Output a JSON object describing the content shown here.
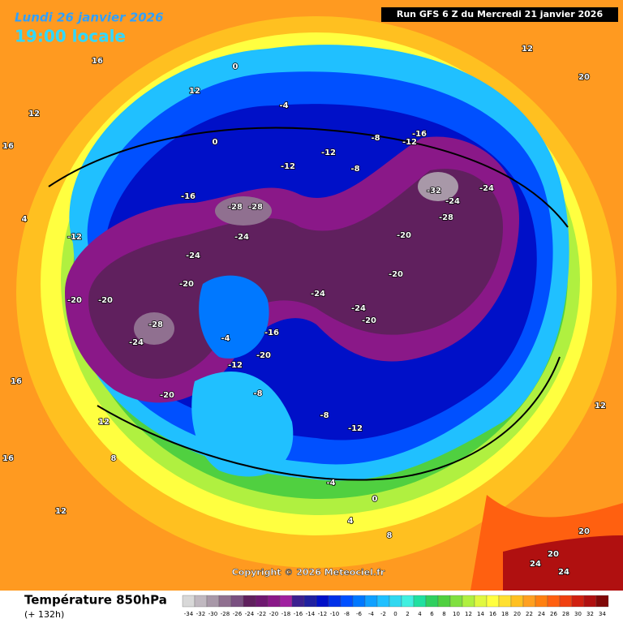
{
  "header": {
    "date": "Lundi 26 janvier 2026",
    "time": "19:00 locale",
    "run": "Run GFS 6 Z du Mercredi 21 janvier 2026"
  },
  "map": {
    "copyright": "Copyright © 2026 Meteociel.fr",
    "labels": [
      -20,
      -20,
      -28,
      -24,
      -20,
      -20,
      -24,
      -28,
      -28,
      -24,
      -16,
      -12,
      -12,
      -12,
      -8,
      -4,
      0,
      0,
      -20,
      -24,
      -24,
      -20,
      -32,
      -24,
      -28,
      -24,
      -20,
      -16,
      -12,
      -8,
      -16,
      -20,
      -12,
      -8,
      -4,
      -12,
      -8,
      -4,
      0,
      4,
      8,
      12,
      16,
      12,
      16,
      20,
      24,
      24,
      20,
      12,
      8,
      4,
      12,
      16,
      20,
      12,
      12,
      16
    ]
  },
  "legend": {
    "title": "Température 850hPa",
    "subtitle": "(+ 132h)",
    "values": [
      -34,
      -32,
      -30,
      -28,
      -26,
      -24,
      -22,
      -20,
      -18,
      -16,
      -14,
      -12,
      -10,
      -8,
      -6,
      -4,
      -2,
      0,
      2,
      4,
      6,
      8,
      10,
      12,
      14,
      16,
      18,
      20,
      22,
      24,
      26,
      28,
      30,
      32,
      34
    ],
    "colors": [
      "#d8d8d8",
      "#c0b8c0",
      "#a898a8",
      "#907090",
      "#7a5080",
      "#60205e",
      "#6e1870",
      "#8a1888",
      "#a020a0",
      "#3c2090",
      "#2020a0",
      "#0010c8",
      "#0030e8",
      "#0050ff",
      "#0078ff",
      "#10a0ff",
      "#20c0ff",
      "#30d8f0",
      "#40f0e0",
      "#20e0a0",
      "#30d060",
      "#50d040",
      "#80e040",
      "#b0f040",
      "#e0f840",
      "#ffff40",
      "#ffe030",
      "#ffc020",
      "#ffa020",
      "#ff8010",
      "#ff6010",
      "#f04010",
      "#d02010",
      "#b01010",
      "#800808"
    ]
  }
}
